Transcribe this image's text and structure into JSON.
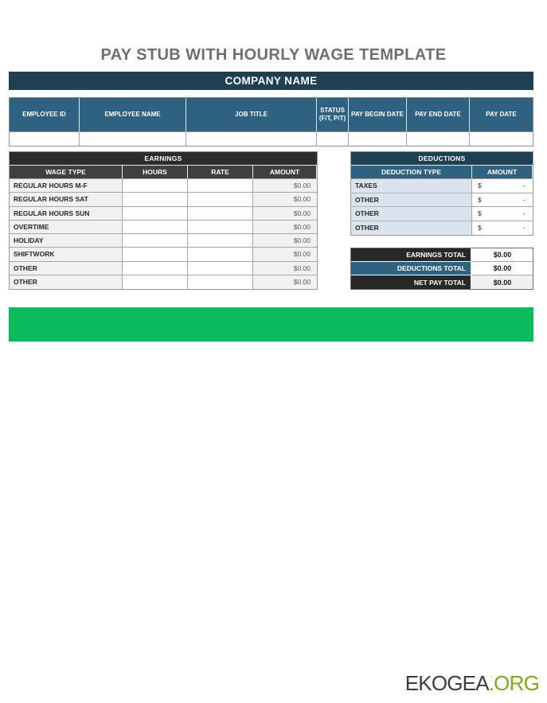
{
  "page": {
    "title": "PAY STUB WITH HOURLY WAGE TEMPLATE"
  },
  "company": {
    "name": "COMPANY NAME"
  },
  "employee_table": {
    "headers": [
      "EMPLOYEE ID",
      "EMPLOYEE NAME",
      "JOB TITLE",
      "STATUS (F/T, P/T)",
      "PAY BEGIN DATE",
      "PAY END DATE",
      "PAY DATE"
    ],
    "values": [
      "",
      "",
      "",
      "",
      "",
      "",
      ""
    ]
  },
  "earnings": {
    "title": "EARNINGS",
    "headers": [
      "WAGE TYPE",
      "HOURS",
      "RATE",
      "AMOUNT"
    ],
    "rows": [
      {
        "wage_type": "REGULAR HOURS M-F",
        "hours": "",
        "rate": "",
        "amount": "$0.00"
      },
      {
        "wage_type": "REGULAR HOURS SAT",
        "hours": "",
        "rate": "",
        "amount": "$0.00"
      },
      {
        "wage_type": "REGULAR HOURS SUN",
        "hours": "",
        "rate": "",
        "amount": "$0.00"
      },
      {
        "wage_type": "OVERTIME",
        "hours": "",
        "rate": "",
        "amount": "$0.00"
      },
      {
        "wage_type": "HOLIDAY",
        "hours": "",
        "rate": "",
        "amount": "$0.00"
      },
      {
        "wage_type": "SHIFTWORK",
        "hours": "",
        "rate": "",
        "amount": "$0.00"
      },
      {
        "wage_type": "OTHER",
        "hours": "",
        "rate": "",
        "amount": "$0.00"
      },
      {
        "wage_type": "OTHER",
        "hours": "",
        "rate": "",
        "amount": "$0.00"
      }
    ]
  },
  "deductions": {
    "title": "DEDUCTIONS",
    "headers": [
      "DEDUCTION TYPE",
      "AMOUNT"
    ],
    "rows": [
      {
        "type": "TAXES",
        "currency": "$",
        "amount": "-"
      },
      {
        "type": "OTHER",
        "currency": "$",
        "amount": "-"
      },
      {
        "type": "OTHER",
        "currency": "$",
        "amount": "-"
      },
      {
        "type": "OTHER",
        "currency": "$",
        "amount": "-"
      }
    ]
  },
  "totals": {
    "rows": [
      {
        "label": "EARNINGS TOTAL",
        "value": "$0.00"
      },
      {
        "label": "DEDUCTIONS TOTAL",
        "value": "$0.00"
      },
      {
        "label": "NET PAY TOTAL",
        "value": "$0.00"
      }
    ]
  },
  "footer": {
    "brand": "EKOGEA",
    "suffix": ".ORG"
  },
  "colors": {
    "navy": "#1f3f52",
    "steel_blue": "#2e6280",
    "charcoal": "#2c2c2c",
    "header_gray": "#3f3f3f",
    "light_gray_cell": "#f1f1f1",
    "light_blue_cell": "#d9e4ee",
    "green_bar": "#0abc5e",
    "logo_green": "#7fa81f",
    "title_gray": "#6f6f6f"
  }
}
